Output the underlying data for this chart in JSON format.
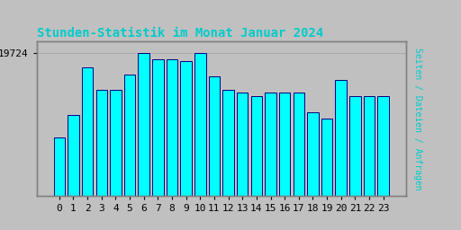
{
  "title": "Stunden-Statistik im Monat Januar 2024",
  "title_color": "#00CCCC",
  "ylabel": "Seiten / Dateien / Anfragen",
  "ylabel_color": "#00CCCC",
  "background_color": "#C0C0C0",
  "plot_bg_color": "#C0C0C0",
  "bar_face_color": "#00FFFF",
  "bar_edge_color": "#000080",
  "ytick_label": "19724",
  "ytick_value": 19724,
  "bar_vals": [
    18400,
    18750,
    19500,
    19150,
    19150,
    19380,
    19724,
    19620,
    19620,
    19600,
    19724,
    19350,
    19150,
    19100,
    19050,
    19100,
    19100,
    19100,
    18800,
    18700,
    19300,
    19050,
    19050,
    19050
  ],
  "ylim_min": 17500,
  "ylim_max": 19900,
  "font_family": "monospace",
  "title_fontsize": 10,
  "tick_fontsize": 8,
  "ylabel_fontsize": 7
}
